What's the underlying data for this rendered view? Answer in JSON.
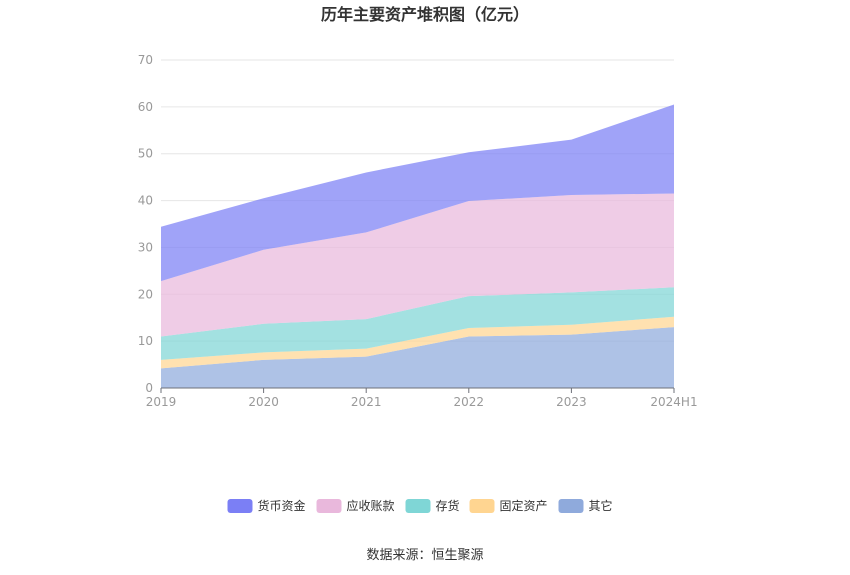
{
  "chart_data": {
    "type": "area",
    "stacked": true,
    "title": "历年主要资产堆积图（亿元）",
    "categories": [
      "2019",
      "2020",
      "2021",
      "2022",
      "2023",
      "2024H1"
    ],
    "ylim": [
      0,
      70
    ],
    "yticks": [
      0,
      10,
      20,
      30,
      40,
      50,
      60,
      70
    ],
    "grid": true,
    "legend_position": "bottom",
    "series": [
      {
        "name": "其它",
        "color": "#8faadc",
        "values": [
          4.2,
          6.0,
          6.7,
          11.0,
          11.4,
          13.0
        ]
      },
      {
        "name": "固定资产",
        "color": "#ffd591",
        "values": [
          1.8,
          1.6,
          1.7,
          1.8,
          2.1,
          2.2
        ]
      },
      {
        "name": "存货",
        "color": "#7fd6d6",
        "values": [
          5.0,
          6.1,
          6.3,
          6.8,
          6.9,
          6.3
        ]
      },
      {
        "name": "应收账款",
        "color": "#e9b8dc",
        "values": [
          11.8,
          15.8,
          18.5,
          20.3,
          20.8,
          20.0
        ]
      },
      {
        "name": "货币资金",
        "color": "#7b7ff5",
        "values": [
          11.6,
          11.0,
          12.8,
          10.4,
          11.8,
          19.0
        ]
      }
    ],
    "legend_order": [
      "货币资金",
      "应收账款",
      "存货",
      "固定资产",
      "其它"
    ]
  },
  "source_text": "数据来源：恒生聚源"
}
